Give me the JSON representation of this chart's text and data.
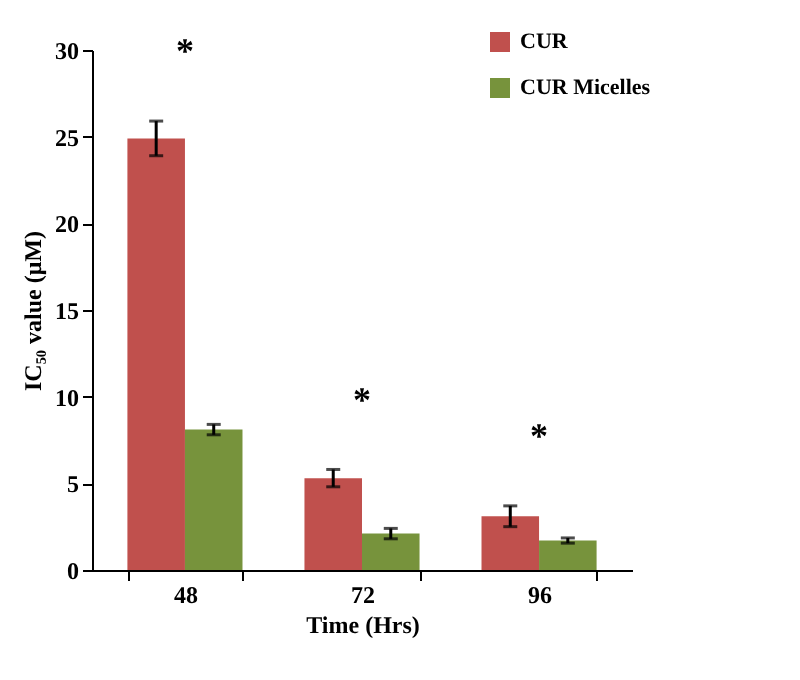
{
  "chart_data": {
    "type": "bar",
    "xlabel": "Time (Hrs)",
    "ylabel": "IC₅₀ value (μM)",
    "categories": [
      "48",
      "72",
      "96"
    ],
    "series": [
      {
        "name": "CUR",
        "color": "#c0504d",
        "values": [
          24.9,
          5.3,
          3.1
        ],
        "errors": [
          1.0,
          0.5,
          0.6
        ]
      },
      {
        "name": "CUR Micelles",
        "color": "#77933c",
        "values": [
          8.1,
          2.1,
          1.7
        ],
        "errors": [
          0.3,
          0.3,
          0.15
        ]
      }
    ],
    "ylim": [
      0,
      30
    ],
    "yticks": [
      0,
      5,
      10,
      15,
      20,
      25,
      30
    ],
    "grid": false,
    "legend": "top right",
    "annotations": [
      "*",
      "*",
      "*"
    ]
  }
}
